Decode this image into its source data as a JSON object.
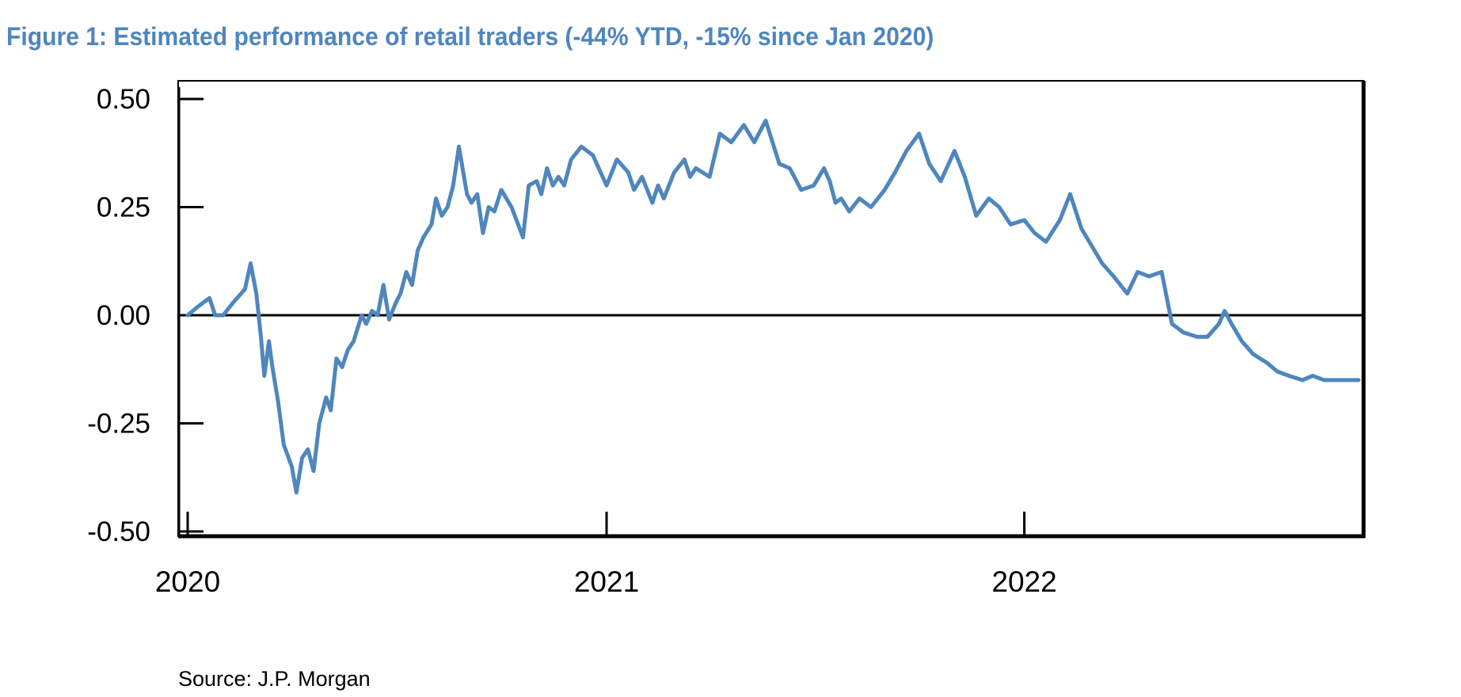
{
  "title": "Figure 1: Estimated performance of retail traders (-44% YTD, -15% since Jan 2020)",
  "source": "Source: J.P. Morgan",
  "colors": {
    "title": "#4f86bd",
    "line": "#4f86bd",
    "axis": "#000000"
  },
  "chart_data": {
    "type": "line",
    "title": "Figure 1: Estimated performance of retail traders (-44% YTD, -15% since Jan 2020)",
    "xlabel": "",
    "ylabel": "",
    "x_ticks": [
      "2020",
      "2021",
      "2022"
    ],
    "y_ticks": [
      "0.50",
      "0.25",
      "0.00",
      "-0.25",
      "-0.50"
    ],
    "ylim": [
      -0.5,
      0.55
    ],
    "xlim": [
      "2020-01-01",
      "2022-10-20"
    ],
    "grid": false,
    "zero_line": true,
    "series": [
      {
        "name": "",
        "x": [
          "2020-01-01",
          "2020-01-10",
          "2020-01-20",
          "2020-01-25",
          "2020-02-01",
          "2020-02-10",
          "2020-02-20",
          "2020-02-25",
          "2020-03-01",
          "2020-03-05",
          "2020-03-08",
          "2020-03-12",
          "2020-03-15",
          "2020-03-20",
          "2020-03-25",
          "2020-04-01",
          "2020-04-05",
          "2020-04-10",
          "2020-04-15",
          "2020-04-20",
          "2020-04-25",
          "2020-05-01",
          "2020-05-05",
          "2020-05-10",
          "2020-05-15",
          "2020-05-20",
          "2020-05-25",
          "2020-06-01",
          "2020-06-05",
          "2020-06-10",
          "2020-06-15",
          "2020-06-20",
          "2020-06-25",
          "2020-07-01",
          "2020-07-05",
          "2020-07-10",
          "2020-07-15",
          "2020-07-20",
          "2020-07-25",
          "2020-08-01",
          "2020-08-05",
          "2020-08-10",
          "2020-08-15",
          "2020-08-20",
          "2020-08-25",
          "2020-09-01",
          "2020-09-05",
          "2020-09-10",
          "2020-09-15",
          "2020-09-20",
          "2020-09-25",
          "2020-10-01",
          "2020-10-10",
          "2020-10-20",
          "2020-10-25",
          "2020-11-01",
          "2020-11-05",
          "2020-11-10",
          "2020-11-15",
          "2020-11-20",
          "2020-11-25",
          "2020-12-01",
          "2020-12-10",
          "2020-12-20",
          "2021-01-01",
          "2021-01-10",
          "2021-01-20",
          "2021-01-25",
          "2021-02-01",
          "2021-02-10",
          "2021-02-15",
          "2021-02-20",
          "2021-03-01",
          "2021-03-10",
          "2021-03-15",
          "2021-03-20",
          "2021-04-01",
          "2021-04-10",
          "2021-04-20",
          "2021-05-01",
          "2021-05-10",
          "2021-05-20",
          "2021-06-01",
          "2021-06-10",
          "2021-06-20",
          "2021-07-01",
          "2021-07-10",
          "2021-07-15",
          "2021-07-20",
          "2021-07-25",
          "2021-08-01",
          "2021-08-10",
          "2021-08-20",
          "2021-09-01",
          "2021-09-10",
          "2021-09-20",
          "2021-10-01",
          "2021-10-10",
          "2021-10-20",
          "2021-11-01",
          "2021-11-10",
          "2021-11-20",
          "2021-12-01",
          "2021-12-10",
          "2021-12-20",
          "2022-01-01",
          "2022-01-10",
          "2022-01-20",
          "2022-02-01",
          "2022-02-10",
          "2022-02-20",
          "2022-03-01",
          "2022-03-10",
          "2022-03-20",
          "2022-04-01",
          "2022-04-10",
          "2022-04-20",
          "2022-05-01",
          "2022-05-10",
          "2022-05-20",
          "2022-06-01",
          "2022-06-10",
          "2022-06-20",
          "2022-06-25",
          "2022-07-01",
          "2022-07-10",
          "2022-07-20",
          "2022-08-01",
          "2022-08-10",
          "2022-08-20",
          "2022-09-01",
          "2022-09-10",
          "2022-09-20",
          "2022-10-01",
          "2022-10-10",
          "2022-10-20"
        ],
        "y": [
          0.0,
          0.02,
          0.04,
          0.0,
          0.0,
          0.03,
          0.06,
          0.12,
          0.05,
          -0.05,
          -0.14,
          -0.06,
          -0.12,
          -0.2,
          -0.3,
          -0.35,
          -0.41,
          -0.33,
          -0.31,
          -0.36,
          -0.25,
          -0.19,
          -0.22,
          -0.1,
          -0.12,
          -0.08,
          -0.06,
          0.0,
          -0.02,
          0.01,
          0.0,
          0.07,
          -0.01,
          0.03,
          0.05,
          0.1,
          0.07,
          0.15,
          0.18,
          0.21,
          0.27,
          0.23,
          0.25,
          0.3,
          0.39,
          0.28,
          0.26,
          0.28,
          0.19,
          0.25,
          0.24,
          0.29,
          0.25,
          0.18,
          0.3,
          0.31,
          0.28,
          0.34,
          0.3,
          0.32,
          0.3,
          0.36,
          0.39,
          0.37,
          0.3,
          0.36,
          0.33,
          0.29,
          0.32,
          0.26,
          0.3,
          0.27,
          0.33,
          0.36,
          0.32,
          0.34,
          0.32,
          0.42,
          0.4,
          0.44,
          0.4,
          0.45,
          0.35,
          0.34,
          0.29,
          0.3,
          0.34,
          0.31,
          0.26,
          0.27,
          0.24,
          0.27,
          0.25,
          0.29,
          0.33,
          0.38,
          0.42,
          0.35,
          0.31,
          0.38,
          0.32,
          0.23,
          0.27,
          0.25,
          0.21,
          0.22,
          0.19,
          0.17,
          0.22,
          0.28,
          0.2,
          0.16,
          0.12,
          0.09,
          0.05,
          0.1,
          0.09,
          0.1,
          -0.02,
          -0.04,
          -0.05,
          -0.05,
          -0.02,
          0.01,
          -0.02,
          -0.06,
          -0.09,
          -0.11,
          -0.13,
          -0.14,
          -0.15,
          -0.14,
          -0.15,
          -0.15,
          -0.15,
          -0.15
        ]
      }
    ]
  }
}
